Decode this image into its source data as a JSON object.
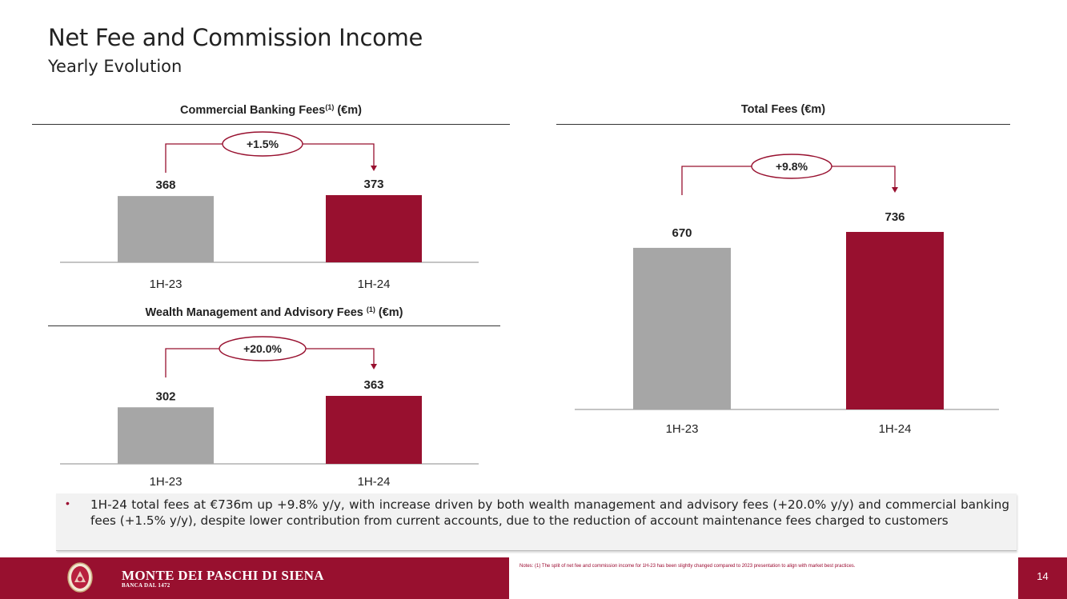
{
  "slide": {
    "title": "Net Fee and Commission Income",
    "subtitle": "Yearly Evolution",
    "page_number": "14"
  },
  "chart_data": [
    {
      "type": "bar",
      "title": "Commercial Banking Fees",
      "title_sup": "(1)",
      "title_suffix": " (€m)",
      "categories": [
        "1H-23",
        "1H-24"
      ],
      "values": [
        368,
        373
      ],
      "value_labels": [
        "368",
        "373"
      ],
      "change_label": "+1.5%",
      "colors": [
        "#a6a6a6",
        "#98102f"
      ]
    },
    {
      "type": "bar",
      "title": "Wealth Management and Advisory Fees ",
      "title_sup": "(1)",
      "title_suffix": " (€m)",
      "categories": [
        "1H-23",
        "1H-24"
      ],
      "values": [
        302,
        363
      ],
      "value_labels": [
        "302",
        "363"
      ],
      "change_label": "+20.0%",
      "colors": [
        "#a6a6a6",
        "#98102f"
      ]
    },
    {
      "type": "bar",
      "title": "Total Fees (€m)",
      "title_sup": "",
      "title_suffix": "",
      "categories": [
        "1H-23",
        "1H-24"
      ],
      "values": [
        670,
        736
      ],
      "value_labels": [
        "670",
        "736"
      ],
      "change_label": "+9.8%",
      "colors": [
        "#a6a6a6",
        "#98102f"
      ]
    }
  ],
  "commentary": {
    "bullet": "•",
    "text": "1H-24 total fees at €736m up +9.8% y/y, with increase driven by both wealth management and advisory fees (+20.0% y/y) and commercial banking fees (+1.5% y/y), despite lower contribution from current accounts, due to the reduction of account maintenance fees charged to customers"
  },
  "footer": {
    "brand": "MONTE DEI PASCHI DI SIENA",
    "brand_sub": "BANCA DAL 1472",
    "note": "Notes: (1) The split of net fee and commission income for 1H-23 has been slightly changed compared to 2023 presentation to align with market best practices."
  },
  "colors": {
    "brand": "#98102f",
    "bar_prior": "#a6a6a6",
    "bar_current": "#98102f"
  }
}
